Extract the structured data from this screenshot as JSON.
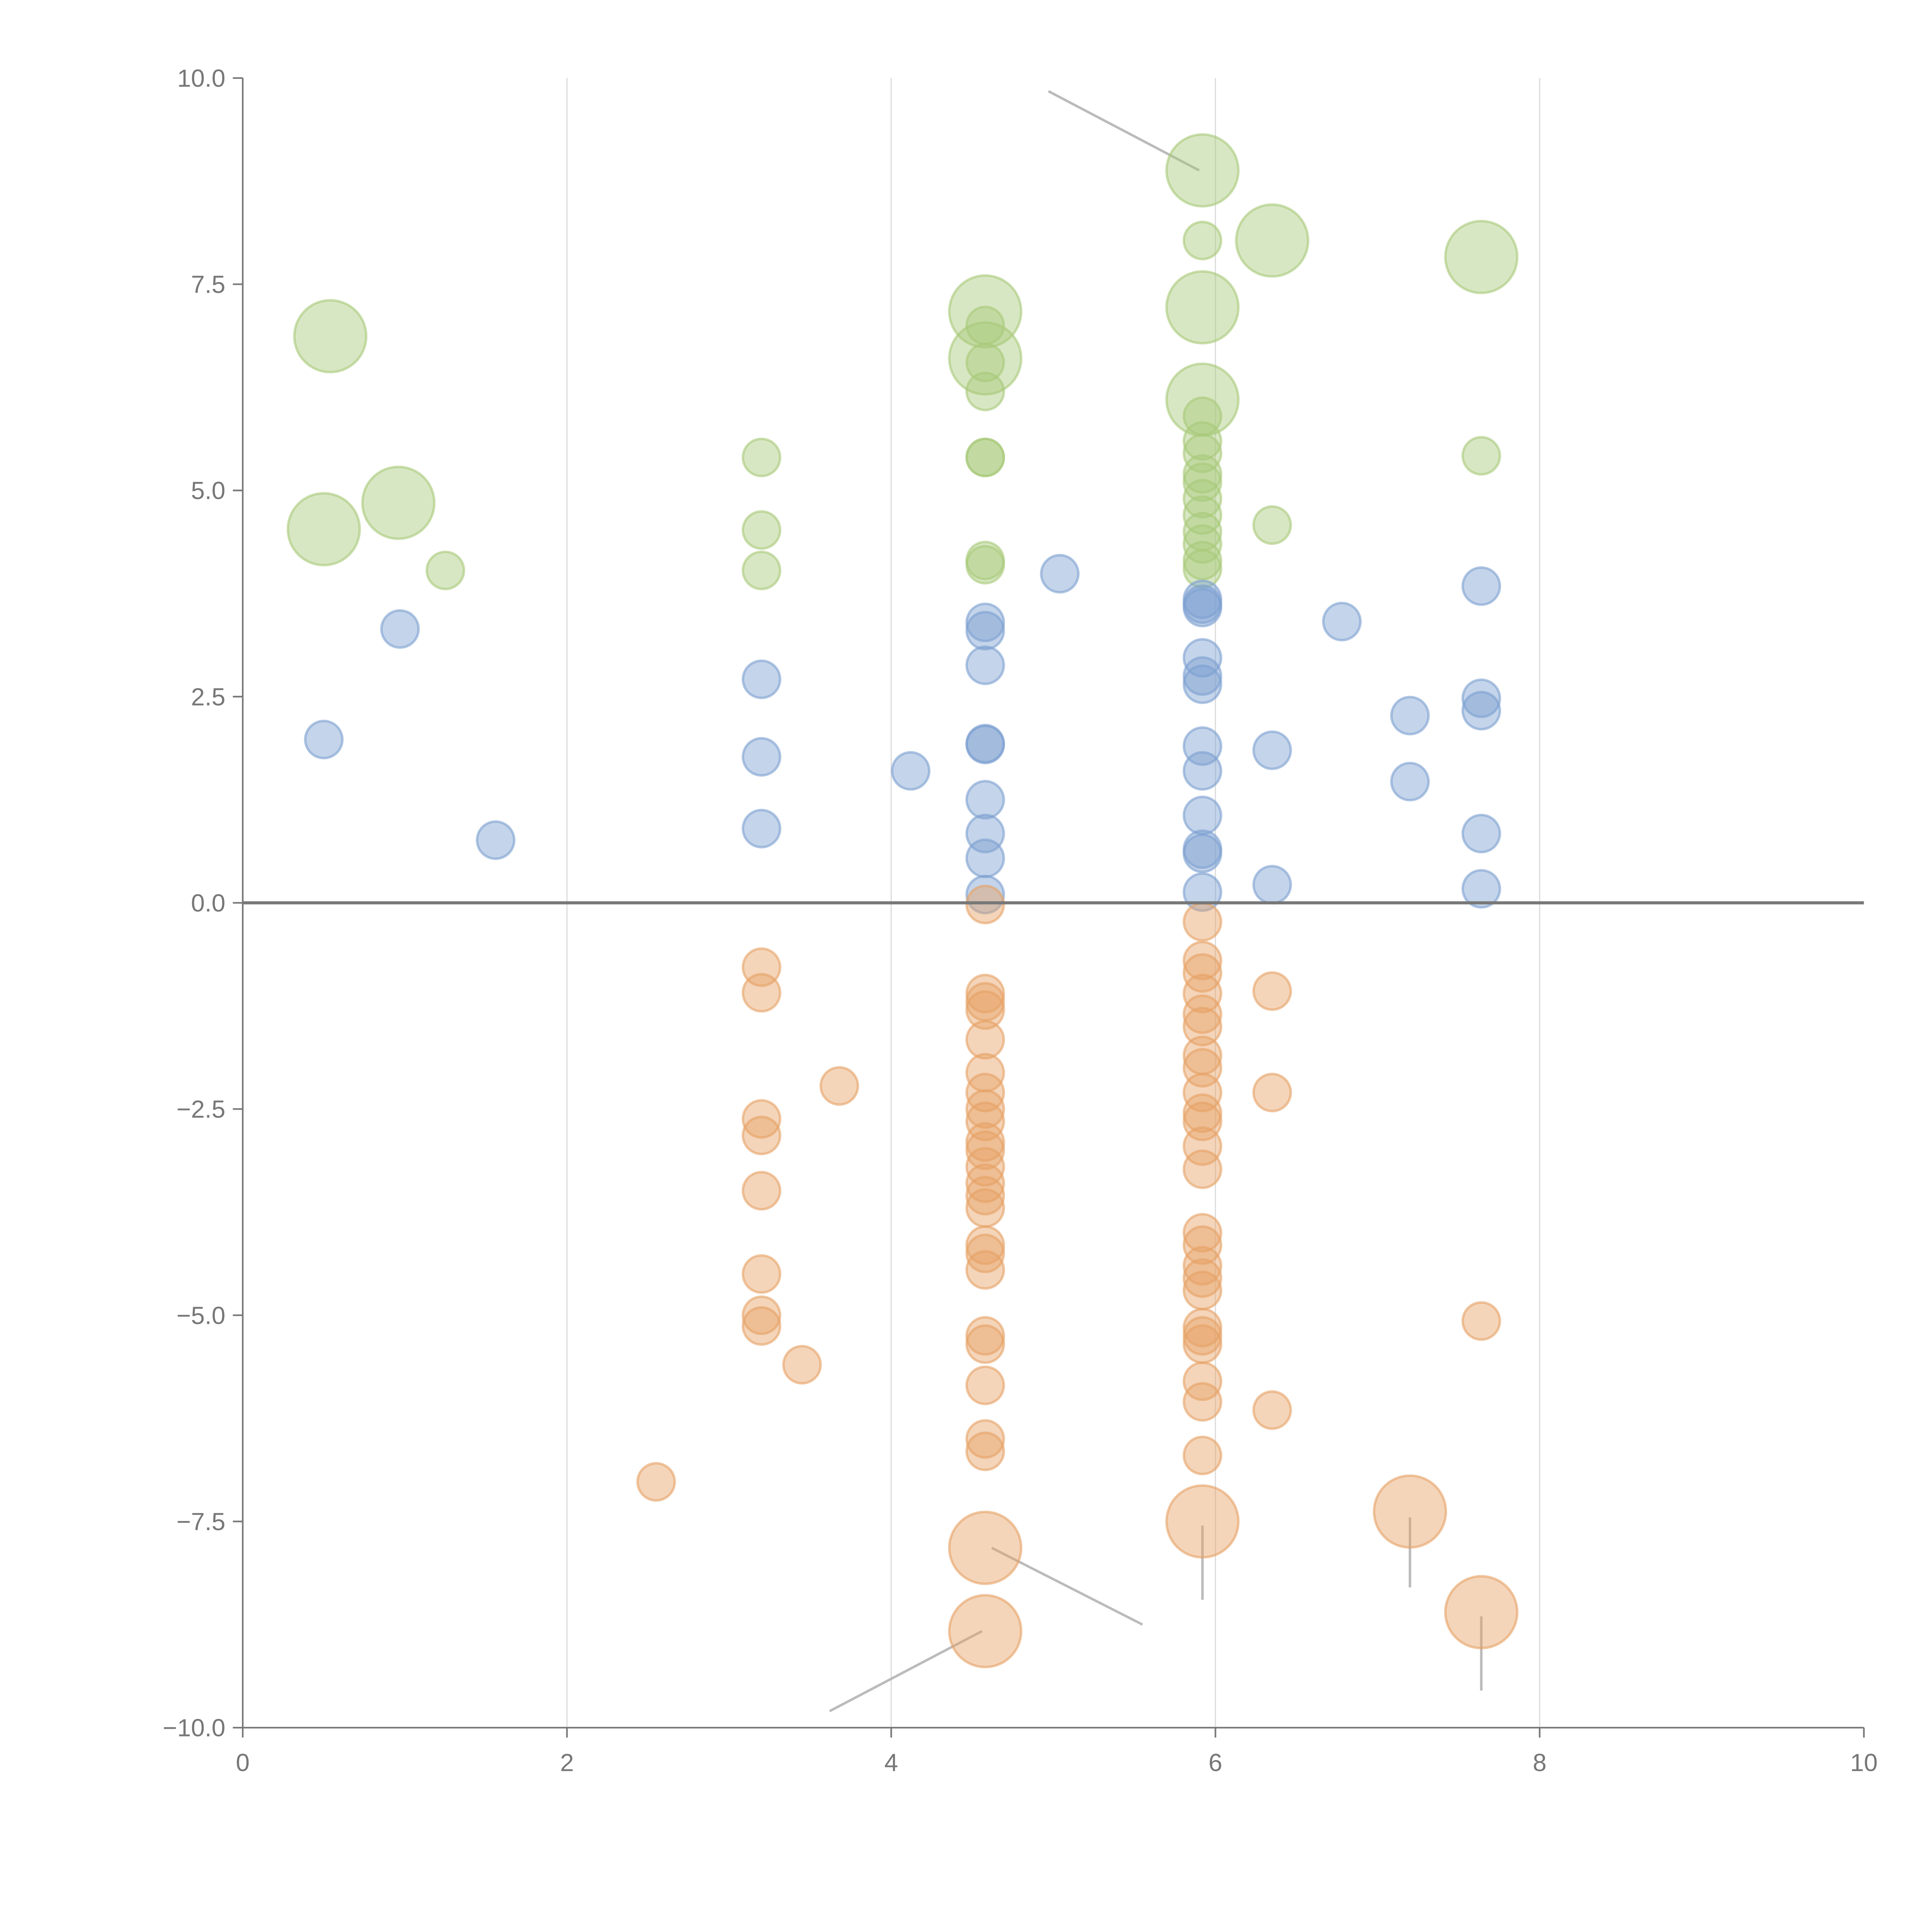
{
  "chart_data": {
    "type": "scatter",
    "title": "",
    "xlabel": "",
    "ylabel": "",
    "xlim": [
      0,
      10
    ],
    "ylim": [
      -10,
      10
    ],
    "grid": "vertical",
    "x_ticks": [
      "0",
      "2",
      "4",
      "6",
      "8",
      "10"
    ],
    "y_ticks": [
      "10.0",
      "7.5",
      "5.0",
      "2.5",
      "0.0",
      "−2.5",
      "−5.0",
      "−7.5",
      "−10.0"
    ],
    "x_tick_values": [
      0,
      2,
      4,
      6,
      8,
      10
    ],
    "y_tick_values": [
      10,
      7.5,
      5,
      2.5,
      0,
      -2.5,
      -5,
      -7.5,
      -10
    ],
    "series": [
      {
        "name": "green",
        "color": "#a9c97a",
        "points": [
          [
            0.54,
            6.87,
            2
          ],
          [
            0.5,
            4.53,
            2
          ],
          [
            0.96,
            4.85,
            2
          ],
          [
            1.25,
            4.03,
            1
          ],
          [
            3.2,
            5.4,
            1
          ],
          [
            3.2,
            4.52,
            1
          ],
          [
            3.2,
            4.03,
            1
          ],
          [
            4.58,
            7.17,
            2
          ],
          [
            4.58,
            6.6,
            2
          ],
          [
            4.58,
            7.0,
            1
          ],
          [
            4.58,
            6.55,
            1
          ],
          [
            4.58,
            6.2,
            1
          ],
          [
            4.58,
            5.4,
            1
          ],
          [
            4.58,
            5.4,
            1
          ],
          [
            4.58,
            4.15,
            1
          ],
          [
            4.58,
            4.1,
            1
          ],
          [
            5.92,
            8.88,
            2
          ],
          [
            5.92,
            8.03,
            1
          ],
          [
            5.92,
            7.22,
            2
          ],
          [
            6.35,
            8.03,
            2
          ],
          [
            7.64,
            7.83,
            2
          ],
          [
            5.92,
            6.1,
            2
          ],
          [
            5.92,
            5.9,
            1
          ],
          [
            5.92,
            5.6,
            1
          ],
          [
            5.92,
            5.45,
            1
          ],
          [
            5.92,
            5.2,
            1
          ],
          [
            5.92,
            5.1,
            1
          ],
          [
            5.92,
            4.9,
            1
          ],
          [
            5.92,
            4.7,
            1
          ],
          [
            5.92,
            4.5,
            1
          ],
          [
            5.92,
            4.35,
            1
          ],
          [
            5.92,
            4.15,
            1
          ],
          [
            5.92,
            4.05,
            1
          ],
          [
            6.35,
            4.58,
            1
          ],
          [
            7.64,
            5.42,
            1
          ]
        ]
      },
      {
        "name": "blue",
        "color": "#7da0d0",
        "points": [
          [
            0.5,
            1.98,
            1
          ],
          [
            0.97,
            3.32,
            1
          ],
          [
            1.56,
            0.76,
            1
          ],
          [
            3.2,
            2.71,
            1
          ],
          [
            3.2,
            1.77,
            1
          ],
          [
            3.2,
            0.9,
            1
          ],
          [
            4.12,
            1.6,
            1
          ],
          [
            4.58,
            3.4,
            1
          ],
          [
            4.58,
            3.3,
            1
          ],
          [
            4.58,
            2.88,
            1
          ],
          [
            4.58,
            1.93,
            1
          ],
          [
            4.58,
            1.92,
            1
          ],
          [
            4.58,
            1.25,
            1
          ],
          [
            4.58,
            0.84,
            1
          ],
          [
            4.58,
            0.54,
            1
          ],
          [
            4.58,
            0.1,
            1
          ],
          [
            5.04,
            3.99,
            1
          ],
          [
            5.92,
            3.68,
            1
          ],
          [
            5.92,
            3.62,
            1
          ],
          [
            5.92,
            3.58,
            1
          ],
          [
            5.92,
            2.97,
            1
          ],
          [
            5.92,
            2.75,
            1
          ],
          [
            5.92,
            2.65,
            1
          ],
          [
            5.92,
            1.9,
            1
          ],
          [
            5.92,
            1.6,
            1
          ],
          [
            5.92,
            1.06,
            1
          ],
          [
            5.92,
            0.65,
            1
          ],
          [
            5.92,
            0.6,
            1
          ],
          [
            5.92,
            0.13,
            1
          ],
          [
            6.35,
            1.85,
            1
          ],
          [
            6.35,
            0.22,
            1
          ],
          [
            6.78,
            3.41,
            1
          ],
          [
            7.2,
            2.27,
            1
          ],
          [
            7.2,
            1.47,
            1
          ],
          [
            7.64,
            3.84,
            1
          ],
          [
            7.64,
            2.48,
            1
          ],
          [
            7.64,
            2.33,
            1
          ],
          [
            7.64,
            0.84,
            1
          ],
          [
            7.64,
            0.17,
            1
          ]
        ]
      },
      {
        "name": "orange",
        "color": "#e6a165",
        "points": [
          [
            2.55,
            -7.02,
            1
          ],
          [
            3.2,
            -0.78,
            1
          ],
          [
            3.2,
            -1.09,
            1
          ],
          [
            3.2,
            -2.62,
            1
          ],
          [
            3.2,
            -2.82,
            1
          ],
          [
            3.2,
            -3.49,
            1
          ],
          [
            3.2,
            -4.5,
            1
          ],
          [
            3.2,
            -5.0,
            1
          ],
          [
            3.2,
            -5.13,
            1
          ],
          [
            3.45,
            -5.6,
            1
          ],
          [
            3.68,
            -2.22,
            1
          ],
          [
            4.58,
            -0.02,
            1
          ],
          [
            4.58,
            -1.1,
            1
          ],
          [
            4.58,
            -1.2,
            1
          ],
          [
            4.58,
            -1.3,
            1
          ],
          [
            4.58,
            -1.66,
            1
          ],
          [
            4.58,
            -2.06,
            1
          ],
          [
            4.58,
            -2.3,
            1
          ],
          [
            4.58,
            -2.5,
            1
          ],
          [
            4.58,
            -2.65,
            1
          ],
          [
            4.58,
            -2.9,
            1
          ],
          [
            4.58,
            -3.0,
            1
          ],
          [
            4.58,
            -3.2,
            1
          ],
          [
            4.58,
            -3.4,
            1
          ],
          [
            4.58,
            -3.55,
            1
          ],
          [
            4.58,
            -3.7,
            1
          ],
          [
            4.58,
            -4.15,
            1
          ],
          [
            4.58,
            -4.25,
            1
          ],
          [
            4.58,
            -4.45,
            1
          ],
          [
            4.58,
            -5.25,
            1
          ],
          [
            4.58,
            -5.35,
            1
          ],
          [
            4.58,
            -5.85,
            1
          ],
          [
            4.58,
            -6.5,
            1
          ],
          [
            4.58,
            -6.65,
            1
          ],
          [
            4.58,
            -7.82,
            2
          ],
          [
            4.58,
            -8.83,
            2
          ],
          [
            5.92,
            -0.23,
            1
          ],
          [
            5.92,
            -0.7,
            1
          ],
          [
            5.92,
            -0.85,
            1
          ],
          [
            5.92,
            -1.1,
            1
          ],
          [
            5.92,
            -1.35,
            1
          ],
          [
            5.92,
            -1.5,
            1
          ],
          [
            5.92,
            -1.85,
            1
          ],
          [
            5.92,
            -2.0,
            1
          ],
          [
            5.92,
            -2.3,
            1
          ],
          [
            5.92,
            -2.55,
            1
          ],
          [
            5.92,
            -2.65,
            1
          ],
          [
            5.92,
            -2.95,
            1
          ],
          [
            5.92,
            -3.23,
            1
          ],
          [
            5.92,
            -4.0,
            1
          ],
          [
            5.92,
            -4.15,
            1
          ],
          [
            5.92,
            -4.4,
            1
          ],
          [
            5.92,
            -4.55,
            1
          ],
          [
            5.92,
            -4.7,
            1
          ],
          [
            5.92,
            -5.15,
            1
          ],
          [
            5.92,
            -5.25,
            1
          ],
          [
            5.92,
            -5.35,
            1
          ],
          [
            5.92,
            -5.8,
            1
          ],
          [
            5.92,
            -6.05,
            1
          ],
          [
            5.92,
            -6.7,
            1
          ],
          [
            5.92,
            -7.5,
            2
          ],
          [
            6.35,
            -1.07,
            1
          ],
          [
            6.35,
            -2.3,
            1
          ],
          [
            6.35,
            -6.15,
            1
          ],
          [
            7.2,
            -7.38,
            2
          ],
          [
            7.64,
            -5.07,
            1
          ],
          [
            7.64,
            -8.6,
            2
          ]
        ]
      }
    ]
  }
}
